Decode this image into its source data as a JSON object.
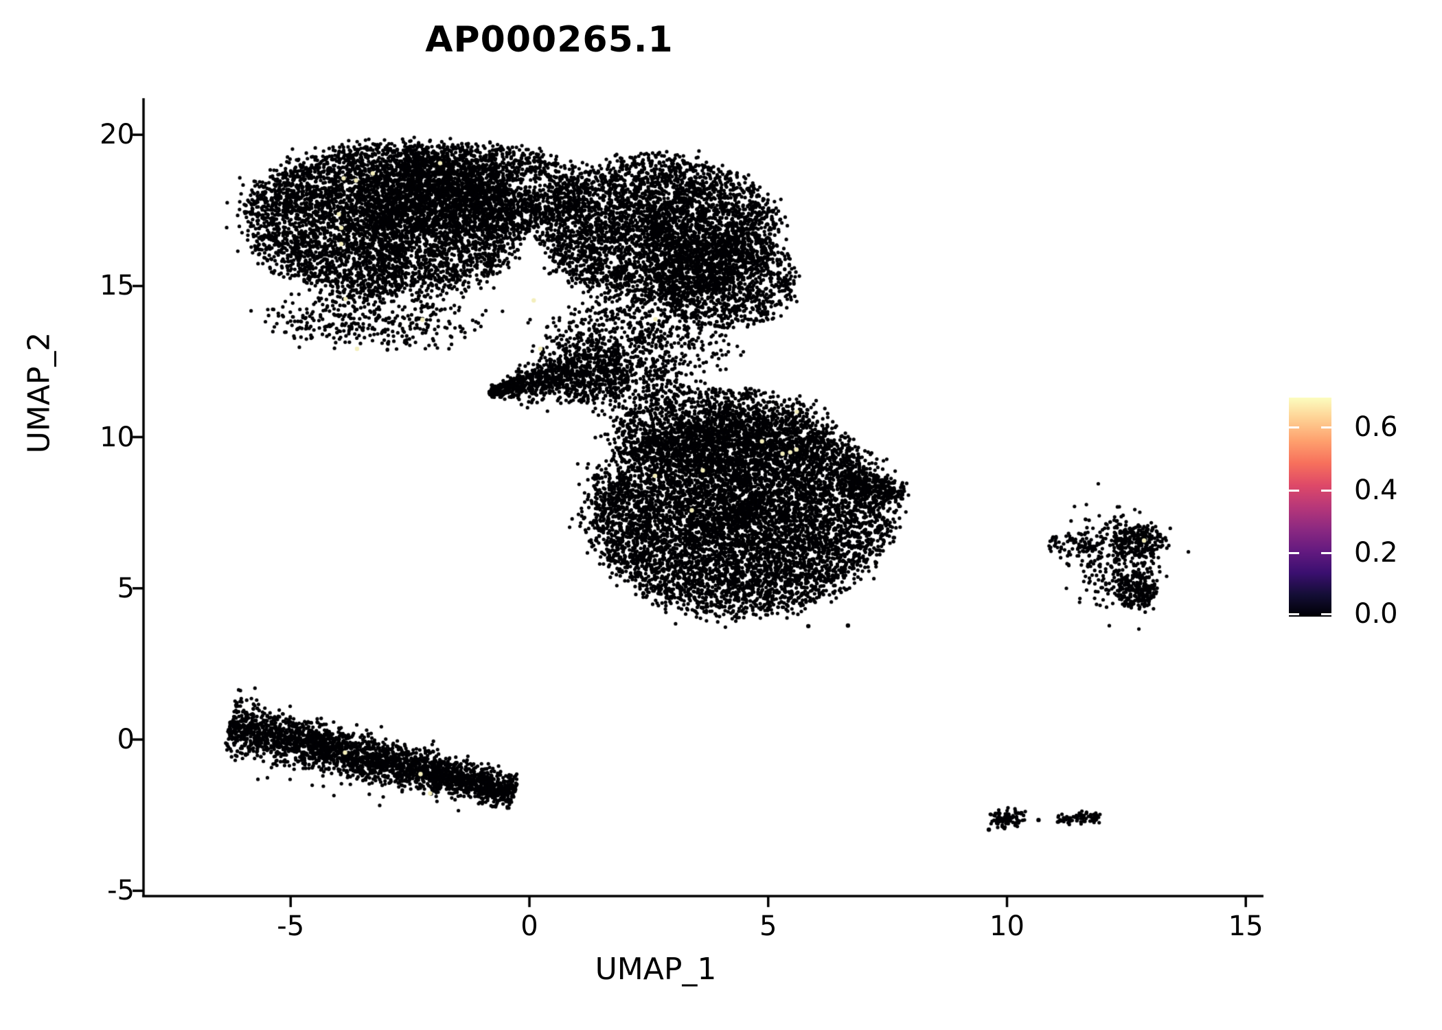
{
  "title": "AP000265.1",
  "axes": {
    "x": {
      "label": "UMAP_1",
      "ticks": [
        -5,
        0,
        5,
        10,
        15
      ]
    },
    "y": {
      "label": "UMAP_2",
      "ticks": [
        20,
        15,
        10,
        5,
        0,
        -5
      ]
    }
  },
  "colorbar": {
    "ticks": [
      {
        "label": "0.6",
        "value": 0.6
      },
      {
        "label": "0.4",
        "value": 0.4
      },
      {
        "label": "0.2",
        "value": 0.2
      },
      {
        "label": "0.0",
        "value": 0.0
      }
    ],
    "range": [
      0,
      0.7
    ],
    "colormap": "magma",
    "gradient_stops": [
      "#000004",
      "#140e36",
      "#3b0f70",
      "#641a80",
      "#8c2981",
      "#b73779",
      "#de4968",
      "#f7705c",
      "#fe9f6d",
      "#fecf92",
      "#fcfdbf"
    ]
  },
  "chart_data": {
    "type": "scatter",
    "title": "AP000265.1",
    "xlabel": "UMAP_1",
    "ylabel": "UMAP_2",
    "xlim": [
      -8.1,
      15.4
    ],
    "ylim": [
      -5.2,
      21.2
    ],
    "legend_position": "right",
    "grid": false,
    "point_color": "#000004",
    "highlight_color": "#f3eebb",
    "point_radius": 2.6,
    "clusters": [
      {
        "name": "upper-left-lobe",
        "type": "blob",
        "cx": -3.0,
        "cy": 17.2,
        "rx": 2.95,
        "ry": 2.5,
        "n": 5200
      },
      {
        "name": "upper-top-middle",
        "type": "blob",
        "cx": -1.1,
        "cy": 18.2,
        "rx": 2.2,
        "ry": 1.5,
        "n": 1800
      },
      {
        "name": "upper-right-lobe",
        "type": "blob",
        "cx": 2.7,
        "cy": 16.9,
        "rx": 2.45,
        "ry": 2.35,
        "n": 3900
      },
      {
        "name": "upper-right-lower",
        "type": "blob",
        "cx": 4.1,
        "cy": 15.2,
        "rx": 1.5,
        "ry": 1.6,
        "n": 1100
      },
      {
        "name": "upper-left-fringe",
        "type": "blob",
        "cx": -3.2,
        "cy": 13.9,
        "rx": 2.0,
        "ry": 0.9,
        "n": 380,
        "soft": true
      },
      {
        "name": "bridge",
        "type": "blob",
        "cx": 2.3,
        "cy": 13.2,
        "rx": 1.8,
        "ry": 1.5,
        "n": 680,
        "soft": true
      },
      {
        "name": "bridge-lower",
        "type": "blob",
        "cx": 2.1,
        "cy": 11.6,
        "rx": 1.2,
        "ry": 0.8,
        "n": 230,
        "soft": true
      },
      {
        "name": "wedge",
        "type": "band",
        "x1": -0.85,
        "y1": 11.5,
        "x2": 1.95,
        "y2": 12.45,
        "w0": 0.07,
        "w1": 0.7,
        "n": 950
      },
      {
        "name": "center-main",
        "type": "blob",
        "cx": 4.4,
        "cy": 7.5,
        "rx": 3.1,
        "ry": 3.3,
        "n": 7800
      },
      {
        "name": "center-top",
        "type": "blob",
        "cx": 4.0,
        "cy": 10.2,
        "rx": 2.3,
        "ry": 1.4,
        "n": 1400
      },
      {
        "name": "center-right-spur",
        "type": "band",
        "x1": 6.6,
        "y1": 8.6,
        "x2": 7.85,
        "y2": 8.1,
        "w0": 0.28,
        "w1": 0.18,
        "n": 260
      },
      {
        "name": "donut-ring",
        "type": "ring",
        "cx": 12.3,
        "cy": 5.95,
        "rx": 0.62,
        "ry": 0.98,
        "tube": 0.16,
        "n": 300
      },
      {
        "name": "donut-bottom",
        "type": "blob",
        "cx": 12.7,
        "cy": 4.95,
        "rx": 0.42,
        "ry": 0.6,
        "n": 200
      },
      {
        "name": "donut-top-right",
        "type": "blob",
        "cx": 12.75,
        "cy": 6.55,
        "rx": 0.55,
        "ry": 0.5,
        "n": 170
      },
      {
        "name": "donut-trail",
        "type": "band",
        "x1": 10.9,
        "y1": 6.6,
        "x2": 12.0,
        "y2": 6.3,
        "w0": 0.16,
        "w1": 0.16,
        "n": 80
      },
      {
        "name": "lower-left-streak",
        "type": "band",
        "x1": -6.3,
        "y1": 0.45,
        "x2": -0.3,
        "y2": -1.75,
        "w0": 0.45,
        "w1": 0.26,
        "n": 2700
      },
      {
        "name": "south-east-blob",
        "type": "blob",
        "cx": 10.0,
        "cy": -2.62,
        "rx": 0.4,
        "ry": 0.35,
        "n": 95
      },
      {
        "name": "south-east-dash",
        "type": "band",
        "x1": 11.05,
        "y1": -2.68,
        "x2": 11.95,
        "y2": -2.52,
        "w0": 0.1,
        "w1": 0.1,
        "n": 75
      },
      {
        "name": "stray-points",
        "type": "points",
        "pts": [
          [
            6.67,
            3.77
          ],
          [
            5.84,
            3.75
          ],
          [
            10.66,
            -2.66
          ],
          [
            9.62,
            -2.98
          ]
        ]
      }
    ],
    "highlights": [
      [
        -3.89,
        18.56
      ],
      [
        -3.63,
        18.49
      ],
      [
        -3.28,
        18.72
      ],
      [
        -1.87,
        19.06
      ],
      [
        -3.99,
        17.37
      ],
      [
        -3.94,
        16.92
      ],
      [
        -3.94,
        16.39
      ],
      [
        -3.85,
        14.57
      ],
      [
        -2.24,
        13.88
      ],
      [
        -3.61,
        12.92
      ],
      [
        0.09,
        14.52
      ],
      [
        0.23,
        12.92
      ],
      [
        2.64,
        13.9
      ],
      [
        5.6,
        10.84
      ],
      [
        4.87,
        9.86
      ],
      [
        5.3,
        9.45
      ],
      [
        5.46,
        9.5
      ],
      [
        5.59,
        9.59
      ],
      [
        3.63,
        8.9
      ],
      [
        2.63,
        8.72
      ],
      [
        3.4,
        7.58
      ],
      [
        12.87,
        6.58
      ],
      [
        -3.86,
        -0.43
      ],
      [
        -2.28,
        -1.14
      ],
      [
        -2.08,
        -1.78
      ]
    ]
  }
}
